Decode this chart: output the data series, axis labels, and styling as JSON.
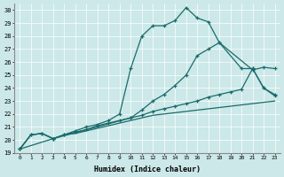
{
  "xlabel": "Humidex (Indice chaleur)",
  "xlim": [
    -0.5,
    23.5
  ],
  "ylim": [
    19,
    30.5
  ],
  "yticks": [
    19,
    20,
    21,
    22,
    23,
    24,
    25,
    26,
    27,
    28,
    29,
    30
  ],
  "xticks": [
    0,
    1,
    2,
    3,
    4,
    5,
    6,
    7,
    8,
    9,
    10,
    11,
    12,
    13,
    14,
    15,
    16,
    17,
    18,
    19,
    20,
    21,
    22,
    23
  ],
  "bg_color": "#cce8e8",
  "line_color": "#1a6b6b",
  "lines": [
    {
      "x": [
        0,
        1,
        2,
        3,
        4,
        5,
        6,
        7,
        8,
        9,
        10,
        11,
        12,
        13,
        14,
        15,
        16,
        17,
        18,
        21,
        22,
        23
      ],
      "y": [
        19.3,
        20.4,
        20.5,
        20.1,
        20.4,
        20.7,
        21.0,
        21.2,
        21.5,
        22.0,
        25.5,
        28.0,
        28.8,
        28.8,
        29.2,
        30.2,
        29.4,
        29.1,
        27.5,
        25.4,
        25.6,
        25.5
      ]
    },
    {
      "x": [
        0,
        3,
        10,
        11,
        12,
        13,
        14,
        15,
        16,
        17,
        18,
        20,
        21,
        22,
        23
      ],
      "y": [
        19.3,
        20.1,
        21.7,
        22.3,
        23.0,
        23.5,
        24.2,
        25.0,
        26.5,
        27.0,
        27.5,
        25.5,
        25.5,
        24.0,
        23.4
      ]
    },
    {
      "x": [
        0,
        1,
        2,
        3,
        4,
        5,
        6,
        7,
        8,
        9,
        10,
        11,
        12,
        13,
        14,
        15,
        16,
        17,
        18,
        19,
        20,
        21,
        22,
        23
      ],
      "y": [
        19.3,
        20.4,
        20.5,
        20.1,
        20.4,
        20.6,
        20.8,
        21.1,
        21.3,
        21.5,
        21.7,
        21.9,
        22.2,
        22.4,
        22.6,
        22.8,
        23.0,
        23.3,
        23.5,
        23.7,
        23.9,
        25.5,
        24.0,
        23.5
      ]
    },
    {
      "x": [
        0,
        1,
        2,
        3,
        4,
        5,
        6,
        7,
        8,
        9,
        10,
        11,
        12,
        13,
        14,
        15,
        16,
        17,
        18,
        19,
        20,
        21,
        22,
        23
      ],
      "y": [
        19.3,
        20.4,
        20.5,
        20.1,
        20.4,
        20.5,
        20.7,
        20.9,
        21.1,
        21.3,
        21.5,
        21.7,
        21.9,
        22.0,
        22.1,
        22.2,
        22.3,
        22.4,
        22.5,
        22.6,
        22.7,
        22.8,
        22.9,
        23.0
      ]
    }
  ]
}
